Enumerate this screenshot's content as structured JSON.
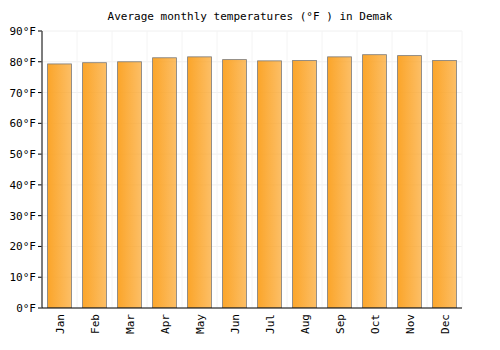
{
  "chart_data": {
    "type": "bar",
    "title": "Average monthly temperatures (°F ) in Demak",
    "categories": [
      "Jan",
      "Feb",
      "Mar",
      "Apr",
      "May",
      "Jun",
      "Jul",
      "Aug",
      "Sep",
      "Oct",
      "Nov",
      "Dec"
    ],
    "values": [
      79.3,
      79.7,
      80.0,
      81.3,
      81.6,
      80.7,
      80.3,
      80.4,
      81.6,
      82.3,
      82.0,
      80.4
    ],
    "color": "#fba52a",
    "ylim": [
      0,
      90
    ],
    "yticks": [
      {
        "value": 0,
        "label": "0°F"
      },
      {
        "value": 10,
        "label": "10°F"
      },
      {
        "value": 20,
        "label": "20°F"
      },
      {
        "value": 30,
        "label": "30°F"
      },
      {
        "value": 40,
        "label": "40°F"
      },
      {
        "value": 50,
        "label": "50°F"
      },
      {
        "value": 60,
        "label": "60°F"
      },
      {
        "value": 70,
        "label": "70°F"
      },
      {
        "value": 80,
        "label": "80°F"
      },
      {
        "value": 90,
        "label": "90°F"
      }
    ],
    "grid": true
  }
}
